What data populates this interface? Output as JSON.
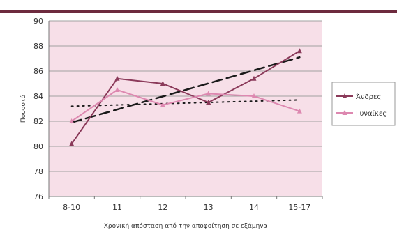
{
  "chart_data": {
    "type": "line",
    "title": "",
    "xlabel": "Χρονική απόσταση από την αποφοίτηση σε εξάμηνα",
    "ylabel": "Ποσοστό",
    "categories": [
      "8-10",
      "11",
      "12",
      "13",
      "14",
      "15-17"
    ],
    "ylim": [
      76,
      90
    ],
    "yticks": [
      76,
      78,
      80,
      82,
      84,
      86,
      88,
      90
    ],
    "grid": true,
    "legend_position": "right",
    "series": [
      {
        "name": "Άνδρες",
        "values": [
          80.2,
          85.4,
          85.0,
          83.5,
          85.4,
          87.6
        ],
        "color": "#8b3a5a",
        "marker": "triangle"
      },
      {
        "name": "Γυναίκες",
        "values": [
          82.0,
          84.5,
          83.3,
          84.2,
          84.0,
          82.8
        ],
        "color": "#dd88b0",
        "marker": "triangle"
      }
    ],
    "trendlines": [
      {
        "series": "Άνδρες",
        "style": "dashed",
        "start": 81.9,
        "end": 87.1,
        "color": "#1a1a1a"
      },
      {
        "series": "Γυναίκες",
        "style": "dotted",
        "start": 83.2,
        "end": 83.7,
        "color": "#1a1a1a"
      }
    ],
    "plot_background": "#f7dfe8",
    "grid_color": "#a0a0a0"
  },
  "accent_color": "#6d2a3e"
}
